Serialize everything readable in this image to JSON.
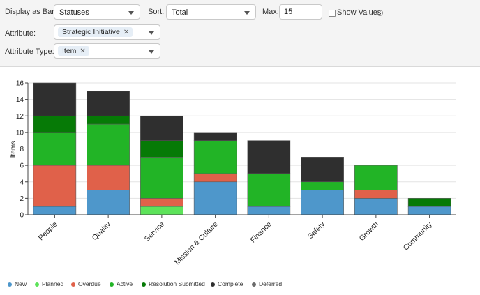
{
  "controls": {
    "display_as_bar_label": "Display as Bar:",
    "display_as_bar_value": "Statuses",
    "sort_label": "Sort:",
    "sort_value": "Total",
    "max_label": "Max:",
    "max_value": "15",
    "show_values_label": "Show Values",
    "attribute_label": "Attribute:",
    "attribute_chip": "Strategic Initiative",
    "attribute_type_label": "Attribute Type:",
    "attribute_type_chip": "Item",
    "chip_remove_glyph": "✕",
    "info_glyph": "i"
  },
  "chart_data": {
    "type": "bar",
    "stacked": true,
    "ylabel": "Items",
    "ylim": [
      0,
      16
    ],
    "yticks": [
      0,
      2,
      4,
      6,
      8,
      10,
      12,
      14,
      16
    ],
    "grid": true,
    "legend_position": "bottom-left",
    "categories": [
      "People",
      "Quality",
      "Service",
      "Mission & Culture",
      "Finance",
      "Safety",
      "Growth",
      "Community"
    ],
    "series": [
      {
        "name": "New",
        "color": "#4e97cb",
        "values": [
          1,
          3,
          0,
          4,
          1,
          3,
          2,
          1
        ]
      },
      {
        "name": "Planned",
        "color": "#5de35a",
        "values": [
          0,
          0,
          1,
          0,
          0,
          0,
          0,
          0
        ]
      },
      {
        "name": "Overdue",
        "color": "#e0614a",
        "values": [
          5,
          3,
          1,
          1,
          0,
          0,
          1,
          0
        ]
      },
      {
        "name": "Active",
        "color": "#22b426",
        "values": [
          4,
          5,
          5,
          4,
          4,
          1,
          3,
          0
        ]
      },
      {
        "name": "Resolution Submitted",
        "color": "#067a06",
        "values": [
          2,
          1,
          2,
          0,
          0,
          0,
          0,
          1
        ]
      },
      {
        "name": "Complete",
        "color": "#2f2f2f",
        "values": [
          4,
          3,
          3,
          1,
          4,
          3,
          0,
          0
        ]
      },
      {
        "name": "Deferred",
        "color": "#6b6b6b",
        "values": [
          0,
          0,
          0,
          0,
          0,
          0,
          0,
          0
        ]
      }
    ]
  }
}
